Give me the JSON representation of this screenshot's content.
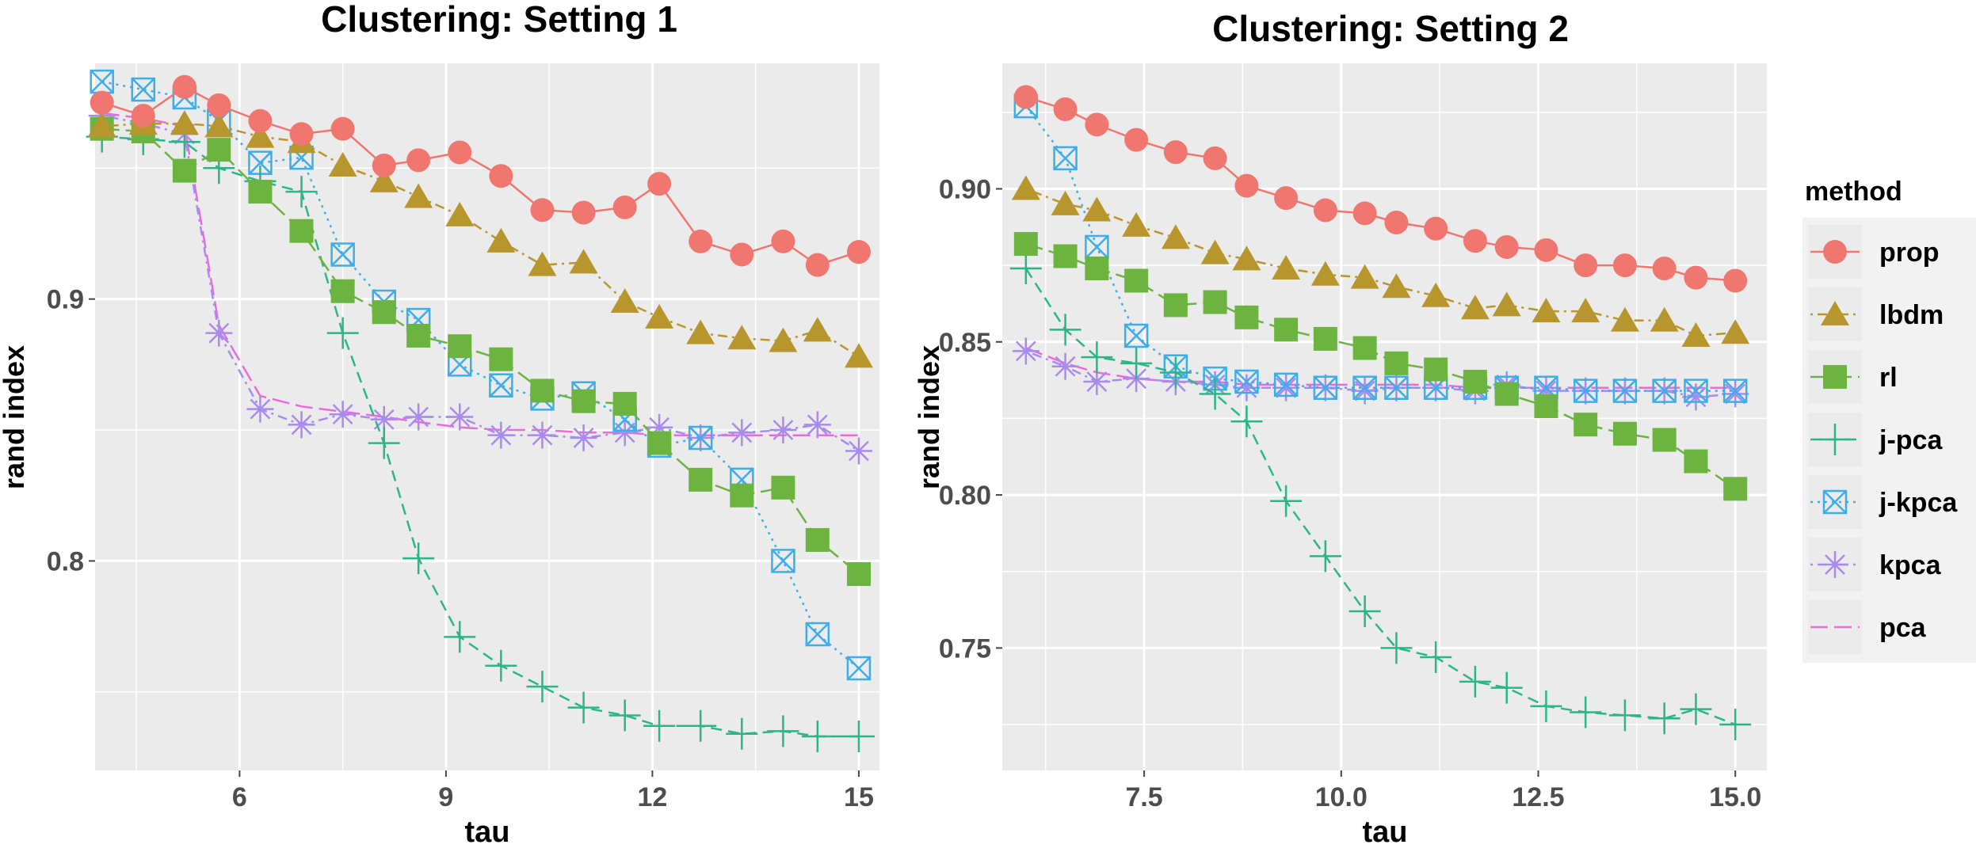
{
  "legend": {
    "title": "method",
    "entries": [
      {
        "key": "prop",
        "label": "prop",
        "color": "#F07670",
        "marker": "circle",
        "linestyle": "solid"
      },
      {
        "key": "lbdm",
        "label": "lbdm",
        "color": "#B8962E",
        "marker": "triangle",
        "linestyle": "dotdash"
      },
      {
        "key": "rl",
        "label": "rl",
        "color": "#6CB33F",
        "marker": "square",
        "linestyle": "longdash"
      },
      {
        "key": "jpca",
        "label": "j-pca",
        "color": "#2DB58A",
        "marker": "plus",
        "linestyle": "dashed"
      },
      {
        "key": "jkpca",
        "label": "j-kpca",
        "color": "#3DAEE9",
        "marker": "boxcross",
        "linestyle": "dotted"
      },
      {
        "key": "kpca",
        "label": "kpca",
        "color": "#A98BF0",
        "marker": "asterisk",
        "linestyle": "dotdash"
      },
      {
        "key": "pca",
        "label": "pca",
        "color": "#EB6CD8",
        "marker": "none",
        "linestyle": "longdash"
      }
    ]
  },
  "chart_data": [
    {
      "type": "line",
      "title": "Clustering: Setting 1",
      "xlabel": "tau",
      "ylabel": "rand index",
      "xlim": [
        3.9,
        15.3
      ],
      "ylim": [
        0.72,
        0.99
      ],
      "xticks": [
        6,
        9,
        12,
        15
      ],
      "xtick_labels": [
        "6",
        "9",
        "12",
        "15"
      ],
      "yticks": [
        0.8,
        0.9
      ],
      "ytick_labels": [
        "0.8",
        "0.9"
      ],
      "x": [
        4.0,
        4.6,
        5.2,
        5.7,
        6.3,
        6.9,
        7.5,
        8.1,
        8.6,
        9.2,
        9.8,
        10.4,
        11.0,
        11.6,
        12.1,
        12.7,
        13.3,
        13.9,
        14.4,
        15.0
      ],
      "series": [
        {
          "name": "prop",
          "values": [
            0.975,
            0.97,
            0.981,
            0.974,
            0.968,
            0.963,
            0.965,
            0.951,
            0.953,
            0.956,
            0.947,
            0.934,
            0.933,
            0.935,
            0.944,
            0.922,
            0.917,
            0.922,
            0.913,
            0.918
          ]
        },
        {
          "name": "lbdm",
          "values": [
            0.966,
            0.967,
            0.967,
            0.966,
            0.962,
            0.96,
            0.951,
            0.945,
            0.939,
            0.932,
            0.922,
            0.913,
            0.914,
            0.899,
            0.893,
            0.887,
            0.885,
            0.884,
            0.888,
            0.878
          ]
        },
        {
          "name": "rl",
          "values": [
            0.965,
            0.964,
            0.949,
            0.957,
            0.941,
            0.926,
            0.903,
            0.895,
            0.886,
            0.882,
            0.877,
            0.865,
            0.861,
            0.86,
            0.845,
            0.831,
            0.825,
            0.828,
            0.808,
            0.795
          ]
        },
        {
          "name": "j-pca",
          "values": [
            0.962,
            0.961,
            0.96,
            0.95,
            0.945,
            0.941,
            0.887,
            0.845,
            0.801,
            0.771,
            0.76,
            0.752,
            0.744,
            0.741,
            0.737,
            0.737,
            0.734,
            0.735,
            0.733,
            0.733
          ]
        },
        {
          "name": "j-kpca",
          "values": [
            0.983,
            0.98,
            0.977,
            0.968,
            0.952,
            0.954,
            0.917,
            0.899,
            0.892,
            0.875,
            0.867,
            0.862,
            0.864,
            0.854,
            0.844,
            0.847,
            0.831,
            0.8,
            0.772,
            0.759
          ]
        },
        {
          "name": "kpca",
          "values": [
            0.97,
            0.967,
            0.963,
            0.887,
            0.858,
            0.852,
            0.856,
            0.854,
            0.855,
            0.855,
            0.848,
            0.848,
            0.847,
            0.849,
            0.851,
            0.847,
            0.849,
            0.85,
            0.852,
            0.842
          ]
        },
        {
          "name": "pca",
          "values": [
            0.971,
            0.969,
            0.966,
            0.89,
            0.863,
            0.859,
            0.857,
            0.855,
            0.853,
            0.851,
            0.85,
            0.85,
            0.849,
            0.849,
            0.848,
            0.848,
            0.848,
            0.848,
            0.848,
            0.848
          ]
        }
      ]
    },
    {
      "type": "line",
      "title": "Clustering: Setting 2",
      "xlabel": "tau",
      "ylabel": "rand index",
      "xlim": [
        5.7,
        15.4
      ],
      "ylim": [
        0.71,
        0.941
      ],
      "xticks": [
        7.5,
        10.0,
        12.5,
        15.0
      ],
      "xtick_labels": [
        "7.5",
        "10.0",
        "12.5",
        "15.0"
      ],
      "yticks": [
        0.75,
        0.8,
        0.85,
        0.9
      ],
      "ytick_labels": [
        "0.75",
        "0.80",
        "0.85",
        "0.90"
      ],
      "x": [
        6.0,
        6.5,
        6.9,
        7.4,
        7.9,
        8.4,
        8.8,
        9.3,
        9.8,
        10.3,
        10.7,
        11.2,
        11.7,
        12.1,
        12.6,
        13.1,
        13.6,
        14.1,
        14.5,
        15.0
      ],
      "series": [
        {
          "name": "prop",
          "values": [
            0.93,
            0.926,
            0.921,
            0.916,
            0.912,
            0.91,
            0.901,
            0.897,
            0.893,
            0.892,
            0.889,
            0.887,
            0.883,
            0.881,
            0.88,
            0.875,
            0.875,
            0.874,
            0.871,
            0.87
          ]
        },
        {
          "name": "lbdm",
          "values": [
            0.9,
            0.895,
            0.893,
            0.888,
            0.884,
            0.879,
            0.877,
            0.874,
            0.872,
            0.871,
            0.868,
            0.865,
            0.861,
            0.862,
            0.86,
            0.86,
            0.857,
            0.857,
            0.852,
            0.853
          ]
        },
        {
          "name": "rl",
          "values": [
            0.882,
            0.878,
            0.874,
            0.87,
            0.862,
            0.863,
            0.858,
            0.854,
            0.851,
            0.848,
            0.843,
            0.841,
            0.837,
            0.833,
            0.829,
            0.823,
            0.82,
            0.818,
            0.811,
            0.802
          ]
        },
        {
          "name": "j-pca",
          "values": [
            0.874,
            0.854,
            0.845,
            0.843,
            0.84,
            0.833,
            0.824,
            0.798,
            0.78,
            0.762,
            0.75,
            0.747,
            0.739,
            0.737,
            0.731,
            0.729,
            0.728,
            0.727,
            0.73,
            0.725
          ]
        },
        {
          "name": "j-kpca",
          "values": [
            0.927,
            0.91,
            0.881,
            0.852,
            0.842,
            0.838,
            0.837,
            0.836,
            0.835,
            0.835,
            0.835,
            0.835,
            0.835,
            0.835,
            0.835,
            0.834,
            0.834,
            0.834,
            0.834,
            0.834
          ]
        },
        {
          "name": "kpca",
          "values": [
            0.847,
            0.842,
            0.837,
            0.838,
            0.837,
            0.836,
            0.835,
            0.835,
            0.835,
            0.834,
            0.835,
            0.835,
            0.834,
            0.836,
            0.834,
            0.834,
            0.834,
            0.834,
            0.832,
            0.833
          ]
        },
        {
          "name": "pca",
          "values": [
            0.848,
            0.843,
            0.84,
            0.838,
            0.837,
            0.837,
            0.836,
            0.836,
            0.836,
            0.836,
            0.836,
            0.836,
            0.835,
            0.835,
            0.835,
            0.835,
            0.835,
            0.835,
            0.835,
            0.835
          ]
        }
      ]
    }
  ]
}
